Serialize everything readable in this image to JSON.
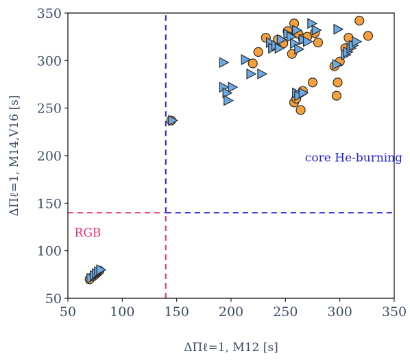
{
  "chart_data": {
    "type": "scatter",
    "title": "",
    "xlabel": "ΔΠℓ=1, M12 [s]",
    "ylabel": "ΔΠℓ=1, M14,V16 [s]",
    "xlim": [
      50,
      350
    ],
    "ylim": [
      50,
      350
    ],
    "xticks": [
      50,
      100,
      150,
      200,
      250,
      300,
      350
    ],
    "yticks": [
      50,
      100,
      150,
      200,
      250,
      300,
      350
    ],
    "grid": false,
    "legend": "none",
    "series": [
      {
        "marker": "circle",
        "color": "#f5a03a",
        "points": [
          [
            70,
            70
          ],
          [
            73,
            73
          ],
          [
            75,
            75
          ],
          [
            77,
            77
          ],
          [
            79,
            79
          ],
          [
            145,
            237
          ],
          [
            220,
            297
          ],
          [
            225,
            309
          ],
          [
            232,
            324
          ],
          [
            243,
            322
          ],
          [
            248,
            318
          ],
          [
            252,
            331
          ],
          [
            256,
            307
          ],
          [
            258,
            339
          ],
          [
            262,
            328
          ],
          [
            266,
            323
          ],
          [
            270,
            325
          ],
          [
            277,
            329
          ],
          [
            280,
            319
          ],
          [
            258,
            256
          ],
          [
            260,
            260
          ],
          [
            264,
            248
          ],
          [
            266,
            268
          ],
          [
            275,
            277
          ],
          [
            295,
            294
          ],
          [
            297,
            263
          ],
          [
            298,
            277
          ],
          [
            300,
            299
          ],
          [
            305,
            313
          ],
          [
            308,
            324
          ],
          [
            318,
            342
          ],
          [
            326,
            326
          ]
        ]
      },
      {
        "marker": "triangle-right",
        "color": "#6aaae6",
        "points": [
          [
            71,
            71
          ],
          [
            74,
            74
          ],
          [
            76,
            76
          ],
          [
            78,
            78
          ],
          [
            80,
            80
          ],
          [
            146,
            237
          ],
          [
            193,
            298
          ],
          [
            193,
            272
          ],
          [
            196,
            266
          ],
          [
            197,
            258
          ],
          [
            201,
            272
          ],
          [
            213,
            301
          ],
          [
            218,
            286
          ],
          [
            228,
            286
          ],
          [
            236,
            319
          ],
          [
            238,
            313
          ],
          [
            241,
            316
          ],
          [
            244,
            313
          ],
          [
            246,
            322
          ],
          [
            252,
            328
          ],
          [
            255,
            325
          ],
          [
            258,
            318
          ],
          [
            260,
            332
          ],
          [
            262,
            312
          ],
          [
            266,
            322
          ],
          [
            270,
            320
          ],
          [
            274,
            339
          ],
          [
            278,
            332
          ],
          [
            260,
            266
          ],
          [
            262,
            263
          ],
          [
            266,
            266
          ],
          [
            297,
            296
          ],
          [
            298,
            333
          ],
          [
            305,
            306
          ],
          [
            307,
            309
          ],
          [
            310,
            313
          ],
          [
            312,
            316
          ],
          [
            315,
            320
          ]
        ]
      }
    ],
    "reference_lines": [
      {
        "orientation": "vertical",
        "x": 140,
        "from_y": 140,
        "to_y": 350,
        "color": "#1f1fe0"
      },
      {
        "orientation": "horizontal",
        "y": 140,
        "from_x": 140,
        "to_x": 350,
        "color": "#1f1fe0"
      },
      {
        "orientation": "vertical",
        "x": 140,
        "from_y": 50,
        "to_y": 140,
        "color": "#ee2a7b"
      },
      {
        "orientation": "horizontal",
        "y": 140,
        "from_x": 50,
        "to_x": 140,
        "color": "#ee2a7b"
      }
    ],
    "annotations": [
      {
        "text": "core He-burning",
        "x": 268,
        "y": 194,
        "color": "#1f1fe0"
      },
      {
        "text": "RGB",
        "x": 56,
        "y": 115,
        "color": "#ee2a7b"
      }
    ]
  }
}
